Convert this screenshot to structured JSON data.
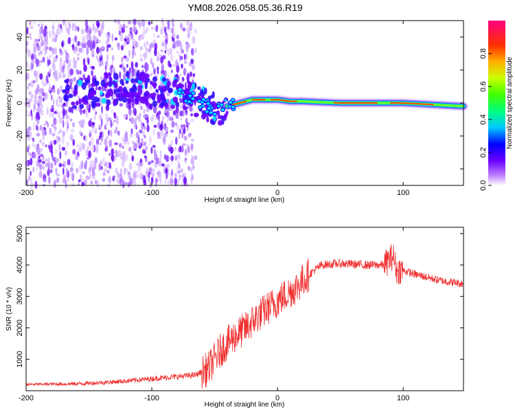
{
  "chart_data": [
    {
      "type": "heatmap",
      "title": "YM08.2026.058.05.36.R19",
      "xlabel": "Height of straight line (km)",
      "ylabel": "Frequency (Hz)",
      "xlim": [
        -200,
        148
      ],
      "ylim": [
        -50,
        50
      ],
      "xticks": [
        "-200",
        "-100",
        "0",
        "100"
      ],
      "xtick_values": [
        -200,
        -100,
        0,
        100
      ],
      "yticks": [
        "-40",
        "-20",
        "0",
        "20",
        "40"
      ],
      "ytick_values": [
        -40,
        -20,
        0,
        20,
        40
      ],
      "ridge": {
        "description_points_x": [
          -160,
          -140,
          -120,
          -100,
          -80,
          -70,
          -60,
          -50,
          -40,
          -30,
          -20,
          -10,
          0,
          10,
          20,
          50,
          100,
          148
        ],
        "description_points_y": [
          6,
          8,
          10,
          8,
          6,
          3,
          0,
          -4,
          -2,
          0,
          2,
          2,
          2,
          1,
          1,
          0,
          0,
          -2
        ]
      },
      "colorbar": {
        "label": "Normalized spectral amplitude",
        "range": [
          0.0,
          1.0
        ],
        "ticks": [
          "0.0",
          "0.2",
          "0.4",
          "0.6",
          "0.8"
        ],
        "tick_values": [
          0.0,
          0.2,
          0.4,
          0.6,
          0.8
        ]
      }
    },
    {
      "type": "line",
      "xlabel": "Height of straight line (km)",
      "ylabel": "SNR (10 * v/v)",
      "xlim": [
        -200,
        148
      ],
      "ylim": [
        0,
        5200
      ],
      "xticks": [
        "-200",
        "-100",
        "0",
        "100"
      ],
      "xtick_values": [
        -200,
        -100,
        0,
        100
      ],
      "yticks": [
        "1000",
        "2000",
        "3000",
        "4000",
        "5000"
      ],
      "ytick_values": [
        1000,
        2000,
        3000,
        4000,
        5000
      ],
      "color": "#f03030",
      "trend": {
        "x": [
          -200,
          -160,
          -130,
          -100,
          -80,
          -65,
          -55,
          -45,
          -35,
          -25,
          -15,
          -5,
          5,
          15,
          25,
          35,
          50,
          70,
          85,
          92,
          95,
          98,
          110,
          130,
          148
        ],
        "y": [
          200,
          220,
          280,
          380,
          450,
          500,
          700,
          1300,
          1700,
          2000,
          2400,
          2700,
          3000,
          3300,
          3700,
          4000,
          4050,
          4000,
          4000,
          4300,
          3800,
          3850,
          3700,
          3500,
          3400
        ]
      }
    }
  ]
}
